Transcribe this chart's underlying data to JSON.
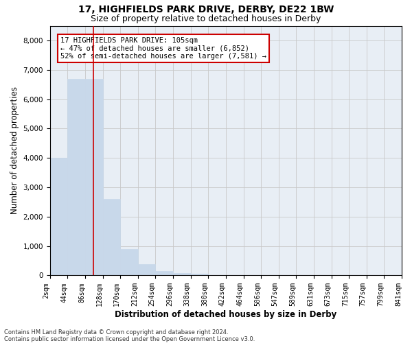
{
  "title_line1": "17, HIGHFIELDS PARK DRIVE, DERBY, DE22 1BW",
  "title_line2": "Size of property relative to detached houses in Derby",
  "xlabel": "Distribution of detached houses by size in Derby",
  "ylabel": "Number of detached properties",
  "bin_labels": [
    "2sqm",
    "44sqm",
    "86sqm",
    "128sqm",
    "170sqm",
    "212sqm",
    "254sqm",
    "296sqm",
    "338sqm",
    "380sqm",
    "422sqm",
    "464sqm",
    "506sqm",
    "547sqm",
    "589sqm",
    "631sqm",
    "673sqm",
    "715sqm",
    "757sqm",
    "799sqm",
    "841sqm"
  ],
  "bar_values": [
    4000,
    6700,
    6700,
    2600,
    900,
    380,
    150,
    80,
    50,
    0,
    0,
    0,
    0,
    0,
    0,
    0,
    0,
    0,
    0,
    0
  ],
  "bar_color": "#c8d8ea",
  "bar_edge_color": "#c8d8ea",
  "grid_color": "#c8c8c8",
  "bg_color": "#e8eef5",
  "vline_color": "#cc0000",
  "annotation_text": "17 HIGHFIELDS PARK DRIVE: 105sqm\n← 47% of detached houses are smaller (6,852)\n52% of semi-detached houses are larger (7,581) →",
  "annotation_box_color": "white",
  "annotation_box_edge": "#cc0000",
  "ylim": [
    0,
    8500
  ],
  "yticks": [
    0,
    1000,
    2000,
    3000,
    4000,
    5000,
    6000,
    7000,
    8000
  ],
  "footnote": "Contains HM Land Registry data © Crown copyright and database right 2024.\nContains public sector information licensed under the Open Government Licence v3.0.",
  "title_fontsize": 10,
  "subtitle_fontsize": 9,
  "label_fontsize": 8.5,
  "tick_fontsize": 7,
  "annot_fontsize": 7.5,
  "footnote_fontsize": 6
}
